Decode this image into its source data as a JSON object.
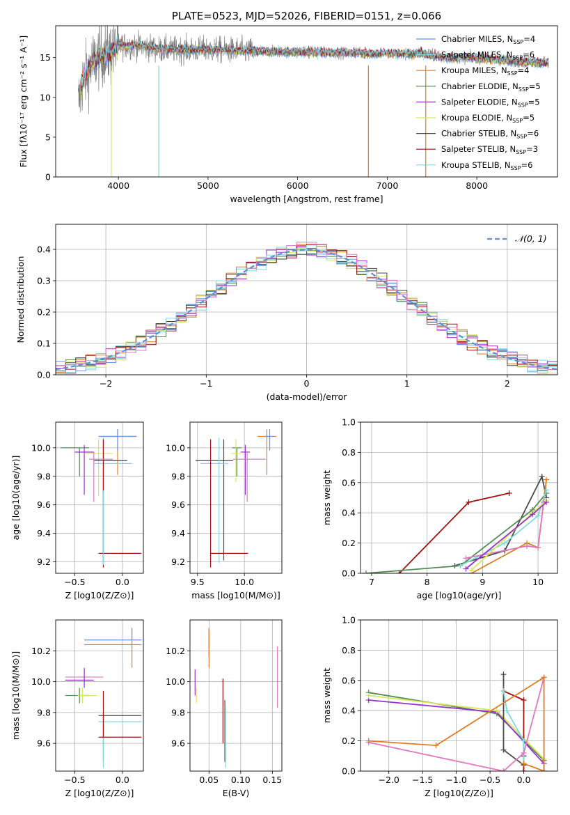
{
  "colors": {
    "chabrier_miles": "#6495ed",
    "salpeter_miles": "#7fdbdb",
    "kroupa_miles": "#e07b20",
    "chabrier_elodie": "#548b54",
    "salpeter_elodie": "#9932cc",
    "kroupa_elodie": "#d8e65a",
    "chabrier_stelib": "#4a4a4a",
    "salpeter_stelib": "#a01010",
    "kroupa_stelib": "#8ad4e8",
    "pink": "#e377c2",
    "gaussian": "#5b8fd6",
    "data_grey": "#808080"
  },
  "chart_data": [
    {
      "id": "spectrum",
      "type": "line",
      "title": "PLATE=0523, MJD=52026, FIBERID=0151, z=0.066",
      "xlabel": "wavelength [Angstrom, rest frame]",
      "ylabel": "Flux [fλ10⁻¹⁷ erg cm⁻² s⁻¹ A⁻¹]",
      "xlim": [
        3300,
        8900
      ],
      "ylim": [
        0,
        19
      ],
      "xticks": [
        "4000",
        "5000",
        "6000",
        "7000",
        "8000"
      ],
      "yticks": [
        "0",
        "5",
        "10",
        "15"
      ],
      "legend_position": "top-right",
      "legend": [
        {
          "name": "Chabrier MILES, N",
          "sub": "SSP",
          "suffix": "=4",
          "color_key": "chabrier_miles"
        },
        {
          "name": "Salpeter MILES, N",
          "sub": "SSP",
          "suffix": "=6",
          "color_key": "salpeter_miles"
        },
        {
          "name": "Kroupa MILES, N",
          "sub": "SSP",
          "suffix": "=4",
          "color_key": "kroupa_miles"
        },
        {
          "name": "Chabrier ELODIE, N",
          "sub": "SSP",
          "suffix": "=5",
          "color_key": "chabrier_elodie"
        },
        {
          "name": "Salpeter ELODIE, N",
          "sub": "SSP",
          "suffix": "=5",
          "color_key": "salpeter_elodie"
        },
        {
          "name": "Kroupa ELODIE, N",
          "sub": "SSP",
          "suffix": "=5",
          "color_key": "kroupa_elodie"
        },
        {
          "name": "Chabrier STELIB, N",
          "sub": "SSP",
          "suffix": "=6",
          "color_key": "chabrier_stelib"
        },
        {
          "name": "Salpeter STELIB, N",
          "sub": "SSP",
          "suffix": "=3",
          "color_key": "salpeter_stelib"
        },
        {
          "name": "Kroupa STELIB, N",
          "sub": "SSP",
          "suffix": "=6",
          "color_key": "kroupa_stelib"
        }
      ],
      "data_envelope": {
        "x": [
          3550,
          3600,
          3700,
          3800,
          3900,
          4000,
          4200,
          4500,
          5000,
          5500,
          6000,
          6500,
          7000,
          7400,
          7600,
          8000,
          8500,
          8800
        ],
        "y": [
          9,
          12,
          14,
          15.5,
          15.5,
          16.5,
          16.5,
          16,
          16,
          15.8,
          15.7,
          15.6,
          15.5,
          15.5,
          15,
          15,
          14.5,
          14.3
        ]
      },
      "sky_dips": [
        {
          "x": 3920,
          "y": 0
        },
        {
          "x": 4450,
          "y": 0
        },
        {
          "x": 6790,
          "y": 0
        },
        {
          "x": 7430,
          "y": 0
        }
      ]
    },
    {
      "id": "residuals",
      "type": "histogram",
      "xlabel": "(data-model)/error",
      "ylabel": "Normed distribution",
      "xlim": [
        -2.5,
        2.5
      ],
      "ylim": [
        0,
        0.48
      ],
      "xticks": [
        "−2",
        "−1",
        "0",
        "1",
        "2"
      ],
      "yticks": [
        "0.0",
        "0.1",
        "0.2",
        "0.3",
        "0.4"
      ],
      "legend_position": "top-right",
      "legend": "𝒩(0, 1)",
      "bin_width": 0.1,
      "bins_start": -2.5
    },
    {
      "id": "age-vs-Z",
      "type": "errorbar",
      "xlabel": "Z [log10(Z/Z⊙)]",
      "ylabel": "age  [log10(age/yr)]",
      "xlim": [
        -0.7,
        0.22
      ],
      "ylim": [
        9.12,
        10.18
      ],
      "xticks": [
        "−0.5",
        "0.0"
      ],
      "yticks": [
        "9.2",
        "9.4",
        "9.6",
        "9.8",
        "10.0"
      ],
      "points": [
        {
          "x": -0.05,
          "y": 10.08,
          "xerr": [
            0.2,
            0.2
          ],
          "yerr": [
            0.27,
            0.05
          ],
          "color_key": "kroupa_miles"
        },
        {
          "x": -0.05,
          "y": 10.08,
          "xerr": [
            0.2,
            0.2
          ],
          "yerr": [
            0.1,
            0.05
          ],
          "color_key": "chabrier_miles"
        },
        {
          "x": -0.45,
          "y": 10.0,
          "xerr": [
            0.2,
            0.1
          ],
          "yerr": [
            0.2,
            0.0
          ],
          "color_key": "chabrier_elodie"
        },
        {
          "x": -0.4,
          "y": 9.97,
          "xerr": [
            0.1,
            0.1
          ],
          "yerr": [
            0.3,
            0.05
          ],
          "color_key": "salpeter_elodie"
        },
        {
          "x": -0.25,
          "y": 9.96,
          "xerr": [
            0.15,
            0.15
          ],
          "yerr": [
            0.3,
            0.1
          ],
          "color_key": "kroupa_elodie"
        },
        {
          "x": -0.2,
          "y": 9.91,
          "xerr": [
            0.1,
            0.25
          ],
          "yerr": [
            0.7,
            0.15
          ],
          "color_key": "chabrier_stelib"
        },
        {
          "x": -0.2,
          "y": 9.89,
          "xerr": [
            0.1,
            0.3
          ],
          "yerr": [
            0.7,
            0.18
          ],
          "color_key": "salpeter_miles"
        },
        {
          "x": -0.2,
          "y": 9.26,
          "xerr": [
            0.05,
            0.4
          ],
          "yerr": [
            0.1,
            0.8
          ],
          "color_key": "salpeter_stelib"
        },
        {
          "x": -0.2,
          "y": 9.2,
          "xerr": [
            0.02,
            0.02
          ],
          "yerr": [
            0.02,
            0.5
          ],
          "color_key": "kroupa_stelib"
        },
        {
          "x": -0.3,
          "y": 9.92,
          "xerr": [
            0.05,
            0.2
          ],
          "yerr": [
            0.3,
            0.05
          ],
          "color_key": "pink"
        }
      ]
    },
    {
      "id": "age-vs-mass",
      "type": "errorbar",
      "xlabel": "mass [log10(M/M⊙)]",
      "ylabel": "",
      "xlim": [
        9.42,
        10.4
      ],
      "ylim": [
        9.12,
        10.18
      ],
      "xticks": [
        "9.5",
        "10.0"
      ],
      "yticks": [
        "9.2",
        "9.4",
        "9.6",
        "9.8",
        "10.0"
      ],
      "points": [
        {
          "x": 10.24,
          "y": 10.08,
          "xerr": [
            0.1,
            0.1
          ],
          "yerr": [
            0.27,
            0.05
          ],
          "color_key": "kroupa_miles"
        },
        {
          "x": 10.27,
          "y": 10.08,
          "xerr": [
            0.05,
            0.05
          ],
          "yerr": [
            0.1,
            0.05
          ],
          "color_key": "chabrier_miles"
        },
        {
          "x": 9.92,
          "y": 10.0,
          "xerr": [
            0.05,
            0.05
          ],
          "yerr": [
            0.2,
            0.0
          ],
          "color_key": "chabrier_elodie"
        },
        {
          "x": 10.01,
          "y": 9.97,
          "xerr": [
            0.05,
            0.05
          ],
          "yerr": [
            0.3,
            0.05
          ],
          "color_key": "salpeter_elodie"
        },
        {
          "x": 9.91,
          "y": 9.96,
          "xerr": [
            0.05,
            0.05
          ],
          "yerr": [
            0.2,
            0.1
          ],
          "color_key": "kroupa_elodie"
        },
        {
          "x": 9.78,
          "y": 9.91,
          "xerr": [
            0.3,
            0.1
          ],
          "yerr": [
            0.7,
            0.15
          ],
          "color_key": "chabrier_stelib"
        },
        {
          "x": 9.73,
          "y": 9.89,
          "xerr": [
            0.2,
            0.1
          ],
          "yerr": [
            0.7,
            0.18
          ],
          "color_key": "kroupa_stelib"
        },
        {
          "x": 9.64,
          "y": 9.26,
          "xerr": [
            0.0,
            0.4
          ],
          "yerr": [
            0.1,
            0.8
          ],
          "color_key": "salpeter_stelib"
        },
        {
          "x": 10.03,
          "y": 9.92,
          "xerr": [
            0.15,
            0.2
          ],
          "yerr": [
            0.3,
            0.05
          ],
          "color_key": "pink"
        }
      ]
    },
    {
      "id": "weight-vs-age",
      "type": "line",
      "xlabel": "age  [log10(age/yr)]",
      "ylabel": "mass weight",
      "xlim": [
        6.8,
        10.35
      ],
      "ylim": [
        0,
        1
      ],
      "xticks": [
        "7",
        "8",
        "9",
        "10"
      ],
      "yticks": [
        "0.0",
        "0.2",
        "0.4",
        "0.6",
        "0.8",
        "1.0"
      ],
      "series": [
        {
          "color_key": "salpeter_stelib",
          "x": [
            7.5,
            8.75,
            9.48
          ],
          "y": [
            0.0,
            0.47,
            0.53
          ]
        },
        {
          "color_key": "chabrier_stelib",
          "x": [
            8.5,
            9.4,
            10.07,
            10.15
          ],
          "y": [
            0.05,
            0.15,
            0.64,
            0.5
          ]
        },
        {
          "color_key": "chabrier_elodie",
          "x": [
            6.9,
            8.6,
            9.9,
            10.15
          ],
          "y": [
            0.0,
            0.05,
            0.42,
            0.53
          ]
        },
        {
          "color_key": "kroupa_miles",
          "x": [
            8.8,
            9.8,
            10.0,
            10.15
          ],
          "y": [
            0.0,
            0.2,
            0.17,
            0.62
          ]
        },
        {
          "color_key": "salpeter_miles",
          "x": [
            8.6,
            9.4,
            10.0,
            10.15
          ],
          "y": [
            0.05,
            0.2,
            0.38,
            0.55
          ]
        },
        {
          "color_key": "pink",
          "x": [
            8.7,
            9.8,
            10.0,
            10.1
          ],
          "y": [
            0.1,
            0.18,
            0.17,
            0.47
          ]
        },
        {
          "color_key": "kroupa_elodie",
          "x": [
            8.8,
            9.9,
            10.15
          ],
          "y": [
            0.02,
            0.4,
            0.48
          ]
        },
        {
          "color_key": "salpeter_elodie",
          "x": [
            8.7,
            9.9,
            10.15
          ],
          "y": [
            0.03,
            0.39,
            0.47
          ]
        }
      ]
    },
    {
      "id": "mass-vs-Z",
      "type": "errorbar",
      "xlabel": "Z [log10(Z/Z⊙)]",
      "ylabel": "mass [log10(M/M⊙)]",
      "xlim": [
        -0.7,
        0.22
      ],
      "ylim": [
        9.42,
        10.4
      ],
      "xticks": [
        "−0.5",
        "0.0"
      ],
      "yticks": [
        "9.6",
        "9.8",
        "10.0",
        "10.2"
      ],
      "points": [
        {
          "x": 0.1,
          "y": 10.27,
          "xerr": [
            0.5,
            0.1
          ],
          "yerr": [
            0.0,
            0.08
          ],
          "color_key": "chabrier_miles"
        },
        {
          "x": 0.1,
          "y": 10.24,
          "xerr": [
            0.5,
            0.1
          ],
          "yerr": [
            0.15,
            0.1
          ],
          "color_key": "kroupa_miles"
        },
        {
          "x": -0.4,
          "y": 10.03,
          "xerr": [
            0.2,
            0.2
          ],
          "yerr": [
            0.05,
            0.05
          ],
          "color_key": "pink"
        },
        {
          "x": -0.4,
          "y": 10.01,
          "xerr": [
            0.2,
            0.1
          ],
          "yerr": [
            0.05,
            0.08
          ],
          "color_key": "salpeter_elodie"
        },
        {
          "x": -0.45,
          "y": 9.91,
          "xerr": [
            0.15,
            0.1
          ],
          "yerr": [
            0.05,
            0.05
          ],
          "color_key": "chabrier_elodie"
        },
        {
          "x": -0.42,
          "y": 9.91,
          "xerr": [
            0.05,
            0.15
          ],
          "yerr": [
            0.05,
            0.05
          ],
          "color_key": "kroupa_elodie"
        },
        {
          "x": -0.2,
          "y": 9.78,
          "xerr": [
            0.05,
            0.4
          ],
          "yerr": [
            0.3,
            0.0
          ],
          "color_key": "chabrier_stelib"
        },
        {
          "x": -0.2,
          "y": 9.74,
          "xerr": [
            0.05,
            0.4
          ],
          "yerr": [
            0.3,
            0.0
          ],
          "color_key": "salpeter_miles"
        },
        {
          "x": -0.2,
          "y": 9.64,
          "xerr": [
            0.05,
            0.4
          ],
          "yerr": [
            0.0,
            0.3
          ],
          "color_key": "salpeter_stelib"
        }
      ]
    },
    {
      "id": "mass-vs-ebv",
      "type": "errorbar",
      "xlabel": "E(B-V)",
      "ylabel": "",
      "xlim": [
        0.02,
        0.165
      ],
      "ylim": [
        9.42,
        10.4
      ],
      "xticks": [
        "0.05",
        "0.10",
        "0.15"
      ],
      "yticks": [
        "9.6",
        "9.8",
        "10.0",
        "10.2"
      ],
      "points": [
        {
          "x": 0.05,
          "y": 10.27,
          "xerr": [
            0,
            0
          ],
          "yerr": [
            0.1,
            0.08
          ],
          "color_key": "chabrier_miles"
        },
        {
          "x": 0.05,
          "y": 10.24,
          "xerr": [
            0,
            0
          ],
          "yerr": [
            0.15,
            0.1
          ],
          "color_key": "kroupa_miles"
        },
        {
          "x": 0.028,
          "y": 10.01,
          "xerr": [
            0,
            0
          ],
          "yerr": [
            0.1,
            0.07
          ],
          "color_key": "salpeter_elodie"
        },
        {
          "x": 0.03,
          "y": 9.91,
          "xerr": [
            0,
            0
          ],
          "yerr": [
            0.05,
            0.05
          ],
          "color_key": "kroupa_elodie"
        },
        {
          "x": 0.072,
          "y": 9.9,
          "xerr": [
            0,
            0
          ],
          "yerr": [
            0.3,
            0.12
          ],
          "color_key": "salpeter_stelib"
        },
        {
          "x": 0.075,
          "y": 9.78,
          "xerr": [
            0,
            0
          ],
          "yerr": [
            0.3,
            0.1
          ],
          "color_key": "chabrier_stelib"
        },
        {
          "x": 0.076,
          "y": 9.74,
          "xerr": [
            0,
            0
          ],
          "yerr": [
            0.3,
            0.1
          ],
          "color_key": "salpeter_miles"
        },
        {
          "x": 0.158,
          "y": 10.03,
          "xerr": [
            0,
            0
          ],
          "yerr": [
            0.2,
            0.2
          ],
          "color_key": "pink"
        }
      ]
    },
    {
      "id": "weight-vs-Z",
      "type": "line",
      "xlabel": "Z [log10(Z/Z⊙)]",
      "ylabel": "mass weight",
      "xlim": [
        -2.42,
        0.5
      ],
      "ylim": [
        0,
        1
      ],
      "xticks": [
        "−2.0",
        "−1.5",
        "−1.0",
        "−0.5",
        "0.0"
      ],
      "yticks": [
        "0.0",
        "0.2",
        "0.4",
        "0.6",
        "0.8",
        "1.0"
      ],
      "series": [
        {
          "color_key": "chabrier_elodie",
          "x": [
            -2.3,
            -0.4,
            0.3,
            0.3
          ],
          "y": [
            0.52,
            0.38,
            0.07,
            0.0
          ]
        },
        {
          "color_key": "salpeter_elodie",
          "x": [
            -2.3,
            -0.4,
            0.3
          ],
          "y": [
            0.47,
            0.39,
            0.05
          ]
        },
        {
          "color_key": "kroupa_elodie",
          "x": [
            -2.3,
            -0.4,
            0.3
          ],
          "y": [
            0.5,
            0.4,
            0.08
          ]
        },
        {
          "color_key": "chabrier_stelib",
          "x": [
            -0.3,
            -0.3,
            0.0,
            0.0
          ],
          "y": [
            0.64,
            0.14,
            0.04,
            0.1
          ]
        },
        {
          "color_key": "salpeter_stelib",
          "x": [
            -0.3,
            0.0,
            0.0
          ],
          "y": [
            0.53,
            0.47,
            0.0
          ]
        },
        {
          "color_key": "salpeter_miles",
          "x": [
            -0.3,
            -0.25,
            0.0,
            0.0
          ],
          "y": [
            0.53,
            0.4,
            0.2,
            0.05
          ]
        },
        {
          "color_key": "pink",
          "x": [
            -2.3,
            -0.3,
            0.0,
            0.3
          ],
          "y": [
            0.19,
            0.0,
            0.12,
            0.62
          ]
        },
        {
          "color_key": "kroupa_miles",
          "x": [
            -2.3,
            -1.3,
            0.3,
            0.3,
            0.0
          ],
          "y": [
            0.2,
            0.17,
            0.62,
            0.0,
            0.05
          ]
        }
      ]
    }
  ]
}
